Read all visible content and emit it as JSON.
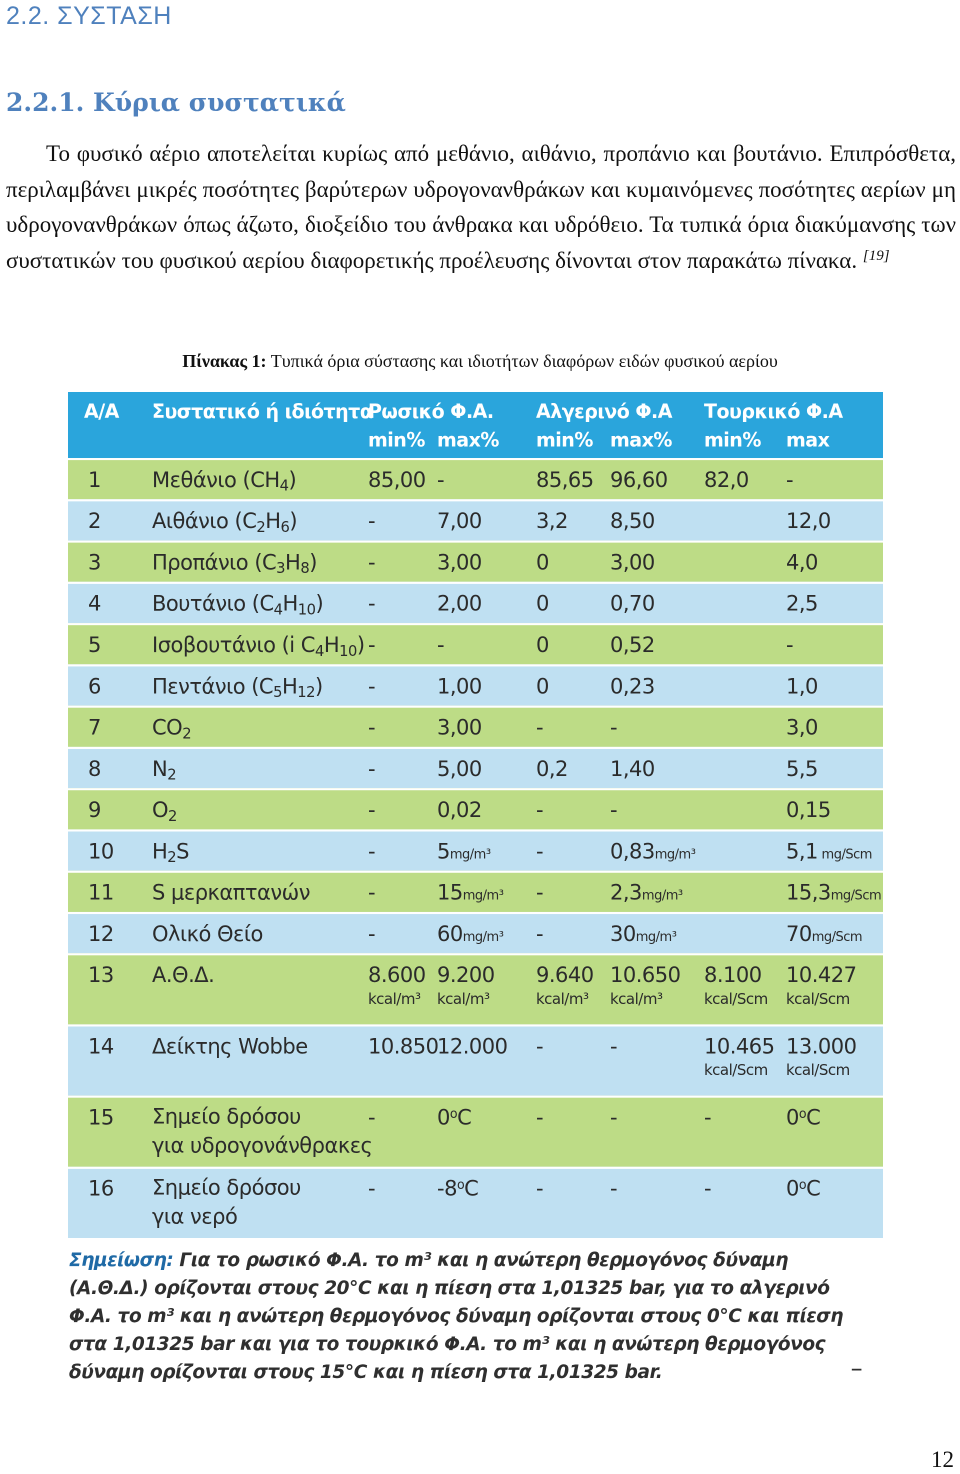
{
  "section_heading": "2.2.  ΣΥΣΤΑΣΗ",
  "subsection_heading": "2.2.1.   Κύρια συστατικά",
  "paragraph": {
    "text_main": "Το φυσικό αέριο αποτελείται κυρίως από μεθάνιο, αιθάνιο, προπάνιο και βουτάνιο. Επιπρόσθετα, περιλαμβάνει μικρές ποσότητες  βαρύτερων υδρογονανθράκων και κυμαινόμενες ποσότητες αερίων μη υδρογονανθράκων όπως άζωτο, διοξείδιο του άνθρακα και υδρόθειο. Τα τυπικά όρια διακύμανσης των συστατικών του φυσικού αερίου διαφορετικής προέλευσης δίνονται στον παρακάτω πίνακα.",
    "citation": "[19]"
  },
  "caption": {
    "label": "Πίνακας 1:",
    "text": " Τυπικά όρια σύστασης και ιδιοτήτων διαφόρων ειδών φυσικού αερίου"
  },
  "table": {
    "headers": {
      "aa": "Α/Α",
      "component": "Συστατικό ή ιδιότητα",
      "russian": "Ρωσικό Φ.Α.",
      "algerian": "Αλγερινό Φ.Α",
      "turkish": "Τουρκικό Φ.Α",
      "min_pct": "min%",
      "max_pct": "max%",
      "min_t": "min%",
      "max_t": "max"
    },
    "rows": [
      {
        "n": "1",
        "name": "Μεθάνιο (CH",
        "sub": "4",
        "tail": ")",
        "c1": "85,00",
        "c2": "-",
        "c3": "85,65",
        "c4": "96,60",
        "c5": "82,0",
        "c6": "-"
      },
      {
        "n": "2",
        "name": "Αιθάνιο (C",
        "sub": "2",
        "mid": "H",
        "sub2": "6",
        "tail": ")",
        "c1": "-",
        "c2": "7,00",
        "c3": "3,2",
        "c4": "8,50",
        "c5": "",
        "c6": "12,0"
      },
      {
        "n": "3",
        "name": "Προπάνιο (C",
        "sub": "3",
        "mid": "H",
        "sub2": "8",
        "tail": ")",
        "c1": "-",
        "c2": "3,00",
        "c3": "0",
        "c4": "3,00",
        "c5": "",
        "c6": "4,0"
      },
      {
        "n": "4",
        "name": "Βουτάνιο (C",
        "sub": "4",
        "mid": "H",
        "sub2": "10",
        "tail": ")",
        "c1": "-",
        "c2": "2,00",
        "c3": "0",
        "c4": "0,70",
        "c5": "",
        "c6": "2,5"
      },
      {
        "n": "5",
        "name": "Ισοβουτάνιο (i C",
        "sub": "4",
        "mid": "H",
        "sub2": "10",
        "tail": ")",
        "c1": "-",
        "c2": "-",
        "c3": "0",
        "c4": "0,52",
        "c5": "",
        "c6": "-"
      },
      {
        "n": "6",
        "name": "Πεντάνιο (C",
        "sub": "5",
        "mid": "H",
        "sub2": "12",
        "tail": ")",
        "c1": "-",
        "c2": "1,00",
        "c3": "0",
        "c4": "0,23",
        "c5": "",
        "c6": "1,0"
      },
      {
        "n": "7",
        "name": "CO",
        "sub": "2",
        "tail": "",
        "c1": "-",
        "c2": "3,00",
        "c3": "-",
        "c4": "-",
        "c5": "",
        "c6": "3,0"
      },
      {
        "n": "8",
        "name": "N",
        "sub": "2",
        "tail": "",
        "c1": "-",
        "c2": "5,00",
        "c3": "0,2",
        "c4": "1,40",
        "c5": "",
        "c6": "5,5"
      },
      {
        "n": "9",
        "name": "O",
        "sub": "2",
        "tail": "",
        "c1": "-",
        "c2": "0,02",
        "c3": "-",
        "c4": "-",
        "c5": "",
        "c6": "0,15"
      },
      {
        "n": "10",
        "name": "H",
        "sub": "2",
        "tail": "S",
        "c1": "-",
        "c2": "5",
        "u2": "mg/m³",
        "c3": "-",
        "c4": "0,83",
        "u4": "mg/m³",
        "c5": "",
        "c6": "5,1",
        "u6": " mg/Scm"
      },
      {
        "n": "11",
        "name": "S μερκαπτανών",
        "sub": "",
        "tail": "",
        "c1": "-",
        "c2": "15",
        "u2": "mg/m³",
        "c3": "-",
        "c4": "2,3",
        "u4": "mg/m³",
        "c5": "",
        "c6": "15,3",
        "u6": "mg/Scm"
      },
      {
        "n": "12",
        "name": "Ολικό Θείο",
        "sub": "",
        "tail": "",
        "c1": "-",
        "c2": "60",
        "u2": "mg/m³",
        "c3": "-",
        "c4": "30",
        "u4": "mg/m³",
        "c5": "",
        "c6": "70",
        "u6": "mg/Scm"
      }
    ],
    "row13": {
      "n": "13",
      "name": "Α.Θ.Δ.",
      "c1": "8.600",
      "c2": "9.200",
      "c3": "9.640",
      "c4": "10.650",
      "c5": "8.100",
      "c6": "10.427",
      "u1": "kcal/m³",
      "u2": "kcal/m³",
      "u3": "kcal/m³",
      "u4": "kcal/m³",
      "u5": "kcal/Scm",
      "u6": "kcal/Scm"
    },
    "row14": {
      "n": "14",
      "name": "Δείκτης Wobbe",
      "c1": "10.850",
      "c2": "12.000",
      "c3": "-",
      "c4": "-",
      "c5": "10.465",
      "c6": "13.000",
      "u5": "kcal/Scm",
      "u6": "kcal/Scm"
    },
    "row15": {
      "n": "15",
      "name1": "Σημείο δρόσου",
      "name2": "για υδρογονάνθρακες",
      "c1": "-",
      "c2": "0",
      "c2u": "C",
      "c3": "-",
      "c4": "-",
      "c5": "-",
      "c6": "0",
      "c6u": "C"
    },
    "row16": {
      "n": "16",
      "name1": "Σημείο δρόσου",
      "name2": "για νερό",
      "c1": "-",
      "c2": "-8",
      "c2u": "C",
      "c3": "-",
      "c4": "-",
      "c5": "-",
      "c6": "0",
      "c6u": "C"
    }
  },
  "note": {
    "label": "Σημείωση:",
    "text": " Για το ρωσικό Φ.Α. το m³ και η ανώτερη θερμογόνος δύναμη (Α.Θ.Δ.) ορίζονται στους 20°C και η πίεση στα 1,01325 bar, για το αλγερινό Φ.Α. το m³ και η ανώτερη θερμογόνος δύναμη ορίζονται στους 0°C και πίεση στα 1,01325 bar και για το τουρκικό Φ.Α. το m³ και η ανώτερη θερμογόνος δύναμη ορίζονται στους 15°C και η πίεση στα 1,01325 bar.",
    "trailing_dash": "_"
  },
  "page_number": "12"
}
